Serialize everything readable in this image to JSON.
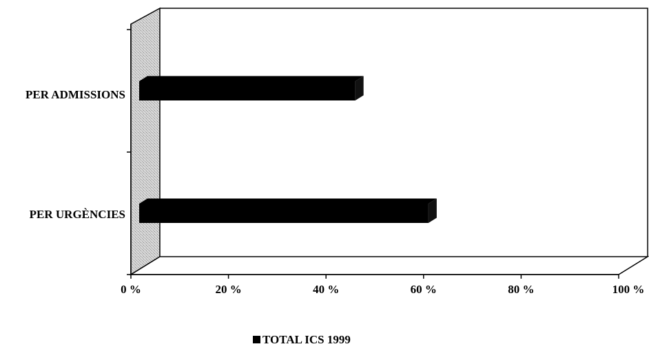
{
  "chart_data": {
    "type": "bar",
    "orientation": "horizontal",
    "three_d": true,
    "categories": [
      "PER ADMISSIONS",
      "PER URGÈNCIES"
    ],
    "series": [
      {
        "name": "TOTAL ICS 1999",
        "values": [
          46,
          61
        ],
        "color": "#000000"
      }
    ],
    "xlim": [
      0,
      100
    ],
    "x_ticks": [
      0,
      20,
      40,
      60,
      80,
      100
    ],
    "x_tick_labels": [
      "0 %",
      "20 %",
      "40 %",
      "60 %",
      "80 %",
      "100 %"
    ],
    "grid": false,
    "legend_position": "bottom",
    "legend_marker": "■",
    "wall_color": "#c8c8c8"
  }
}
